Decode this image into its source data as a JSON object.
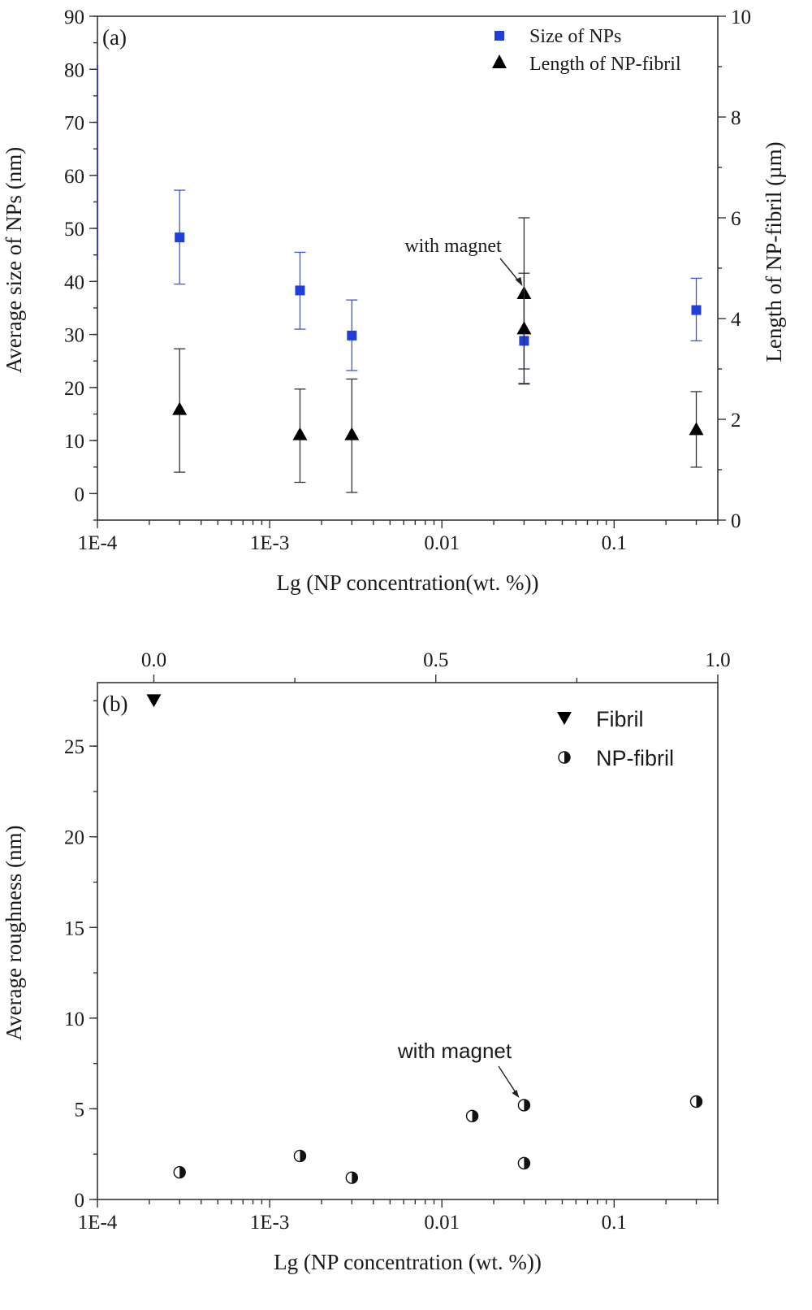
{
  "chart_data": [
    {
      "type": "scatter",
      "panel_label": "(a)",
      "xlabel": "Lg (NP concentration(wt. %))",
      "ylabel_left": "Average size of NPs (nm)",
      "ylabel_right": "Length of NP-fibril (µm)",
      "x_scale": "log",
      "xlim": [
        0.0001,
        0.4
      ],
      "x_ticks": [
        {
          "value": 0.0001,
          "label": "1E-4"
        },
        {
          "value": 0.001,
          "label": "1E-3"
        },
        {
          "value": 0.01,
          "label": "0.01"
        },
        {
          "value": 0.1,
          "label": "0.1"
        }
      ],
      "ylim_left": [
        -5,
        90
      ],
      "y_ticks_left": [
        0,
        10,
        20,
        30,
        40,
        50,
        60,
        70,
        80,
        90
      ],
      "ylim_right": [
        0,
        10
      ],
      "y_ticks_right": [
        0,
        2,
        4,
        6,
        8,
        10
      ],
      "legend_position": "top-right",
      "series": [
        {
          "name": "Size of NPs",
          "axis": "left",
          "marker": "square",
          "color": "#1f3fd8",
          "points": [
            {
              "x": 0.0003,
              "y": 48.3,
              "err_low": 39.5,
              "err_high": 57.2
            },
            {
              "x": 0.0015,
              "y": 38.3,
              "err_low": 31.0,
              "err_high": 45.5
            },
            {
              "x": 0.003,
              "y": 29.8,
              "err_low": 23.2,
              "err_high": 36.5
            },
            {
              "x": 0.03,
              "y": 28.8,
              "err_low": 20.8,
              "err_high": 36.8
            },
            {
              "x": 0.3,
              "y": 34.6,
              "err_low": 28.8,
              "err_high": 40.6
            }
          ]
        },
        {
          "name": "Length of NP-fibril",
          "axis": "right",
          "marker": "triangle-up",
          "color": "#000000",
          "points": [
            {
              "x": 0.0003,
              "y": 2.2,
              "err_low": 0.95,
              "err_high": 3.4
            },
            {
              "x": 0.0015,
              "y": 1.7,
              "err_low": 0.75,
              "err_high": 2.6
            },
            {
              "x": 0.003,
              "y": 1.7,
              "err_low": 0.55,
              "err_high": 2.8
            },
            {
              "x": 0.03,
              "y": 4.5,
              "err_low": 3.0,
              "err_high": 6.0
            },
            {
              "x": 0.03,
              "y": 3.8,
              "err_low": 2.7,
              "err_high": 4.9
            },
            {
              "x": 0.3,
              "y": 1.8,
              "err_low": 1.05,
              "err_high": 2.55
            }
          ]
        }
      ],
      "annotations": [
        {
          "text": "with magnet",
          "points_to": {
            "x": 0.03,
            "y": 4.5,
            "axis": "right"
          }
        }
      ]
    },
    {
      "type": "scatter",
      "panel_label": "(b)",
      "xlabel": "Lg (NP concentration (wt. %))",
      "ylabel": "Average roughness (nm)",
      "x_scale": "log",
      "xlim": [
        0.0001,
        0.4
      ],
      "x_ticks": [
        {
          "value": 0.0001,
          "label": "1E-4"
        },
        {
          "value": 0.001,
          "label": "1E-3"
        },
        {
          "value": 0.01,
          "label": "0.01"
        },
        {
          "value": 0.1,
          "label": "0.1"
        }
      ],
      "x_top_lim": [
        -0.1,
        1.0
      ],
      "x_top_ticks": [
        {
          "value": 0.0,
          "label": "0.0"
        },
        {
          "value": 0.5,
          "label": "0.5"
        },
        {
          "value": 1.0,
          "label": "1.0"
        }
      ],
      "ylim": [
        0,
        28.5
      ],
      "y_ticks": [
        0,
        5,
        10,
        15,
        20,
        25
      ],
      "legend_position": "top-right",
      "series": [
        {
          "name": "Fibril",
          "axis": "top",
          "marker": "triangle-down",
          "color": "#000000",
          "points": [
            {
              "x": 0.0,
              "y": 27.5
            }
          ]
        },
        {
          "name": "NP-fibril",
          "axis": "bottom",
          "marker": "half-filled-circle",
          "color": "#000000",
          "points": [
            {
              "x": 0.0003,
              "y": 1.5
            },
            {
              "x": 0.0015,
              "y": 2.4
            },
            {
              "x": 0.003,
              "y": 1.2
            },
            {
              "x": 0.015,
              "y": 4.6
            },
            {
              "x": 0.03,
              "y": 5.2
            },
            {
              "x": 0.03,
              "y": 2.0
            },
            {
              "x": 0.3,
              "y": 5.4
            }
          ]
        }
      ],
      "annotations": [
        {
          "text": "with magnet",
          "points_to": {
            "x": 0.03,
            "y": 5.2
          }
        }
      ]
    }
  ]
}
